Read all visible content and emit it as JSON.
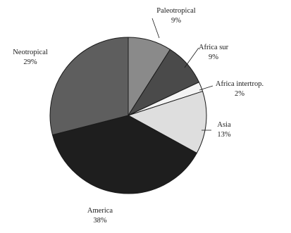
{
  "chart_data": {
    "type": "pie",
    "start": "top",
    "direction": "clockwise",
    "slices": [
      {
        "label": "Paleotropical",
        "value": 9,
        "value_label": "9%",
        "color": "#8a8a8a"
      },
      {
        "label": "Africa sur",
        "value": 9,
        "value_label": "9%",
        "color": "#4a4a4a"
      },
      {
        "label": "Africa intertrop.",
        "value": 2,
        "value_label": "2%",
        "color": "#f4f4f4"
      },
      {
        "label": "Asia",
        "value": 13,
        "value_label": "13%",
        "color": "#dedede"
      },
      {
        "label": "America",
        "value": 38,
        "value_label": "38%",
        "color": "#1e1e1e"
      },
      {
        "label": "Neotropical",
        "value": 29,
        "value_label": "29%",
        "color": "#5e5e5e"
      }
    ]
  }
}
